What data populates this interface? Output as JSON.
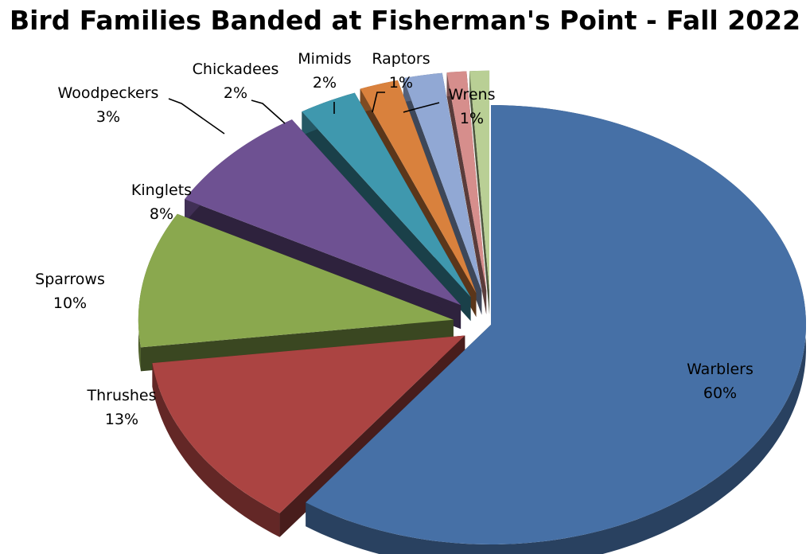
{
  "chart_data": {
    "type": "pie",
    "title": "Bird Families Banded at Fisherman's Point - Fall 2022",
    "categories": [
      "Warblers",
      "Thrushes",
      "Sparrows",
      "Kinglets",
      "Woodpeckers",
      "Chickadees",
      "Mimids",
      "Raptors",
      "Wrens"
    ],
    "values": [
      60,
      13,
      10,
      8,
      3,
      2,
      2,
      1,
      1
    ],
    "value_labels": [
      "60%",
      "13%",
      "10%",
      "8%",
      "3%",
      "2%",
      "2%",
      "1%",
      "1%"
    ],
    "colors": [
      "#4670a6",
      "#ab4442",
      "#8aa84e",
      "#6e5192",
      "#3f98ae",
      "#d9813d",
      "#91a8d4",
      "#d68e8c",
      "#b9cf95"
    ],
    "style": "3D exploded pie",
    "legend": "none"
  }
}
